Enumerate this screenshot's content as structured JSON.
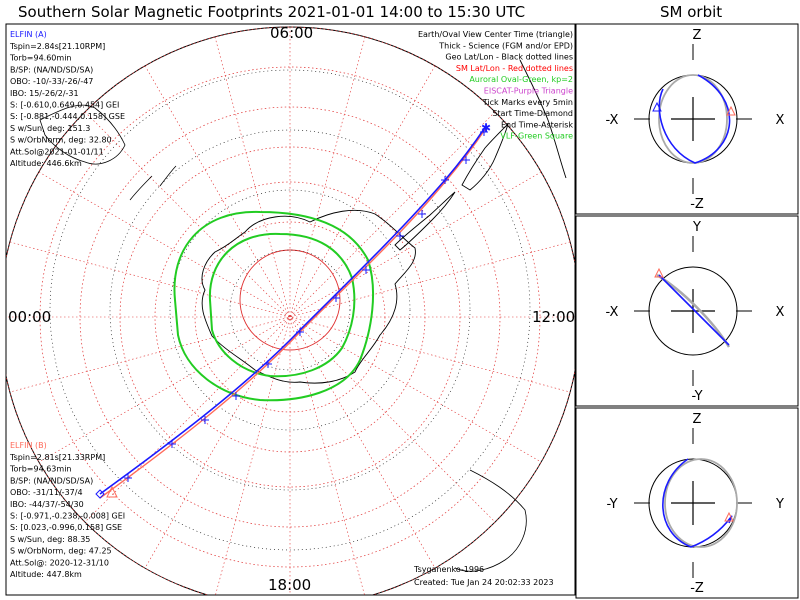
{
  "title": "Southern Solar Magnetic Footprints 2021-01-01 14:00 to 15:30 UTC",
  "orbit_title": "SM orbit",
  "clock_labels": {
    "top": "06:00",
    "bottom": "18:00",
    "left": "00:00",
    "right": "12:00"
  },
  "sat_a": {
    "name": "ELFIN (A)",
    "color": "#1a1aff",
    "lines": [
      "Tspin=2.84s[21.10RPM]",
      "Torb=94.60min",
      "B/SP: (NA/ND/SD/SA)",
      "OBO: -10/-33/-26/-47",
      "IBO: 15/-26/2/-31",
      "S: [-0.610,0.649,0.454] GEI",
      "S: [-0.881,-0.444,0.158] GSE",
      "S w/Sun, deg: 151.3",
      "S w/OrbNorm, deg: 32.80",
      "Att.Sol@2021-01-01/11",
      "Altitude: 446.6km"
    ]
  },
  "sat_b": {
    "name": "ELFIN (B)",
    "color": "#ff6a5a",
    "lines": [
      "Tspin=2.81s[21.33RPM]",
      "Torb=94.63min",
      "B/SP: (NA/ND/SD/SA)",
      "OBO: -31/11/-37/4",
      "IBO: -44/37/-54/30",
      "S: [-0.971,-0.238,-0.008] GEI",
      "S: [0.023,-0.996,0.158] GSE",
      "S w/Sun, deg: 88.35",
      "S w/OrbNorm, deg: 47.25",
      "Att.Sol@: 2020-12-31/10",
      "Altitude: 447.8km"
    ]
  },
  "legend": [
    {
      "text": "Earth/Oval View Center Time (triangle)",
      "color": "#000000"
    },
    {
      "text": "Thick - Science (FGM and/or EPD)",
      "color": "#000000"
    },
    {
      "text": "Geo Lat/Lon - Black dotted lines",
      "color": "#000000"
    },
    {
      "text": "SM Lat/Lon - Red dotted lines",
      "color": "#ff0000"
    },
    {
      "text": "Auroral Oval-Green, kp=2",
      "color": "#22cc22"
    },
    {
      "text": "EISCAT-Purple Triangle",
      "color": "#cc44cc"
    },
    {
      "text": "Tick Marks every 5min",
      "color": "#000000"
    },
    {
      "text": "Start Time-Diamond",
      "color": "#000000"
    },
    {
      "text": "End Time-Asterisk",
      "color": "#000000"
    },
    {
      "text": "VLF-Green Square",
      "color": "#22cc22"
    }
  ],
  "credit": "Tsyganenko-1996",
  "created": "Created: Tue Jan 24 20:02:33 2023",
  "orbit_panels": [
    {
      "top": "Z",
      "bottom": "-Z",
      "left": "-X",
      "right": "X"
    },
    {
      "top": "Y",
      "bottom": "-Y",
      "left": "-X",
      "right": "X"
    },
    {
      "top": "Z",
      "bottom": "-Z",
      "left": "-Y",
      "right": "Y"
    }
  ],
  "colors": {
    "oval": "#22cc22",
    "sm_grid": "#ff0000",
    "geo_grid": "#000000",
    "track_a": "#1a1aff",
    "track_b": "#ff6a5a",
    "orbit_grey": "#aaaaaa"
  }
}
